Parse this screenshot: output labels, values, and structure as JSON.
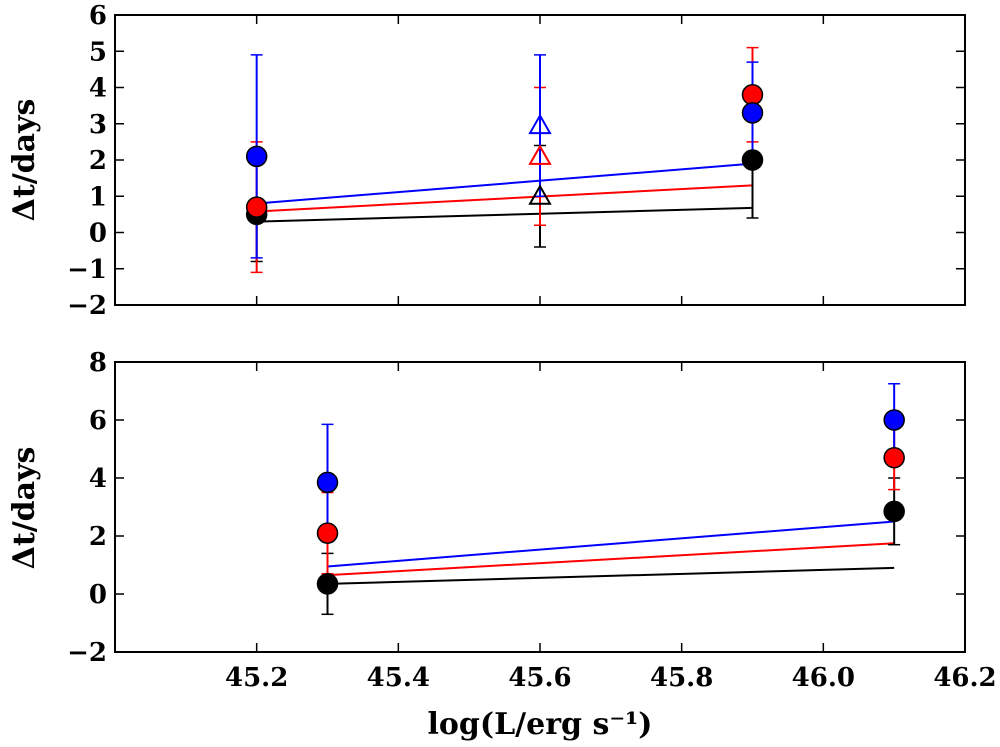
{
  "chart_data": [
    {
      "type": "scatter",
      "panel": "top",
      "ylabel": "Δt/days",
      "xlim": [
        45.0,
        46.2
      ],
      "ylim": [
        -2,
        6
      ],
      "yticks": [
        -2,
        -1,
        0,
        1,
        2,
        3,
        4,
        5,
        6
      ],
      "ytick_labels": [
        "−2",
        "−1",
        "0",
        "1",
        "2",
        "3",
        "4",
        "5",
        "6"
      ],
      "show_xticklabels": false,
      "series": [
        {
          "name": "black",
          "color": "#000000",
          "points": [
            {
              "x": 45.2,
              "y": 0.5,
              "marker": "circle",
              "err_low": -0.8,
              "err_high": 0.8
            },
            {
              "x": 45.6,
              "y": 1.0,
              "marker": "triangle",
              "err_low": -0.4,
              "err_high": 2.4
            },
            {
              "x": 45.9,
              "y": 2.0,
              "marker": "circle",
              "err_low": 0.4,
              "err_high": 3.6
            }
          ],
          "line": [
            [
              45.2,
              0.3
            ],
            [
              45.9,
              0.68
            ]
          ]
        },
        {
          "name": "red",
          "color": "#ff0000",
          "points": [
            {
              "x": 45.2,
              "y": 0.7,
              "marker": "circle",
              "err_low": -1.1,
              "err_high": 2.5
            },
            {
              "x": 45.6,
              "y": 2.1,
              "marker": "triangle",
              "err_low": 0.2,
              "err_high": 4.0
            },
            {
              "x": 45.9,
              "y": 3.8,
              "marker": "circle",
              "err_low": 2.5,
              "err_high": 5.1
            }
          ],
          "line": [
            [
              45.2,
              0.58
            ],
            [
              45.9,
              1.3
            ]
          ]
        },
        {
          "name": "blue",
          "color": "#0000ff",
          "points": [
            {
              "x": 45.2,
              "y": 2.1,
              "marker": "circle",
              "err_low": -0.7,
              "err_high": 4.9
            },
            {
              "x": 45.6,
              "y": 2.95,
              "marker": "triangle",
              "err_low": 1.0,
              "err_high": 4.9
            },
            {
              "x": 45.9,
              "y": 3.3,
              "marker": "circle",
              "err_low": 1.9,
              "err_high": 4.7
            }
          ],
          "line": [
            [
              45.2,
              0.8
            ],
            [
              45.9,
              1.9
            ]
          ]
        }
      ]
    },
    {
      "type": "scatter",
      "panel": "bottom",
      "ylabel": "Δt/days",
      "xlabel": "log(L/erg s⁻¹)",
      "xlim": [
        45.0,
        46.2
      ],
      "ylim": [
        -2,
        8
      ],
      "yticks": [
        -2,
        0,
        2,
        4,
        6,
        8
      ],
      "ytick_labels": [
        "−2",
        "0",
        "2",
        "4",
        "6",
        "8"
      ],
      "xticks": [
        45.2,
        45.4,
        45.6,
        45.8,
        46.0,
        46.2
      ],
      "xtick_labels": [
        "45.2",
        "45.4",
        "45.6",
        "45.8",
        "46.0",
        "46.2"
      ],
      "show_xticklabels": true,
      "series": [
        {
          "name": "black",
          "color": "#000000",
          "points": [
            {
              "x": 45.3,
              "y": 0.35,
              "marker": "circle",
              "err_low": -0.7,
              "err_high": 1.4
            },
            {
              "x": 46.1,
              "y": 2.85,
              "marker": "circle",
              "err_low": 1.7,
              "err_high": 4.0
            }
          ],
          "line": [
            [
              45.3,
              0.35
            ],
            [
              46.1,
              0.9
            ]
          ]
        },
        {
          "name": "red",
          "color": "#ff0000",
          "points": [
            {
              "x": 45.3,
              "y": 2.1,
              "marker": "circle",
              "err_low": 0.7,
              "err_high": 3.5
            },
            {
              "x": 46.1,
              "y": 4.7,
              "marker": "circle",
              "err_low": 3.6,
              "err_high": 5.8
            }
          ],
          "line": [
            [
              45.3,
              0.65
            ],
            [
              46.1,
              1.75
            ]
          ]
        },
        {
          "name": "blue",
          "color": "#0000ff",
          "points": [
            {
              "x": 45.3,
              "y": 3.85,
              "marker": "circle",
              "err_low": 1.8,
              "err_high": 5.85
            },
            {
              "x": 46.1,
              "y": 6.0,
              "marker": "circle",
              "err_low": 4.8,
              "err_high": 7.25
            }
          ],
          "line": [
            [
              45.3,
              0.95
            ],
            [
              46.1,
              2.5
            ]
          ]
        }
      ]
    }
  ]
}
